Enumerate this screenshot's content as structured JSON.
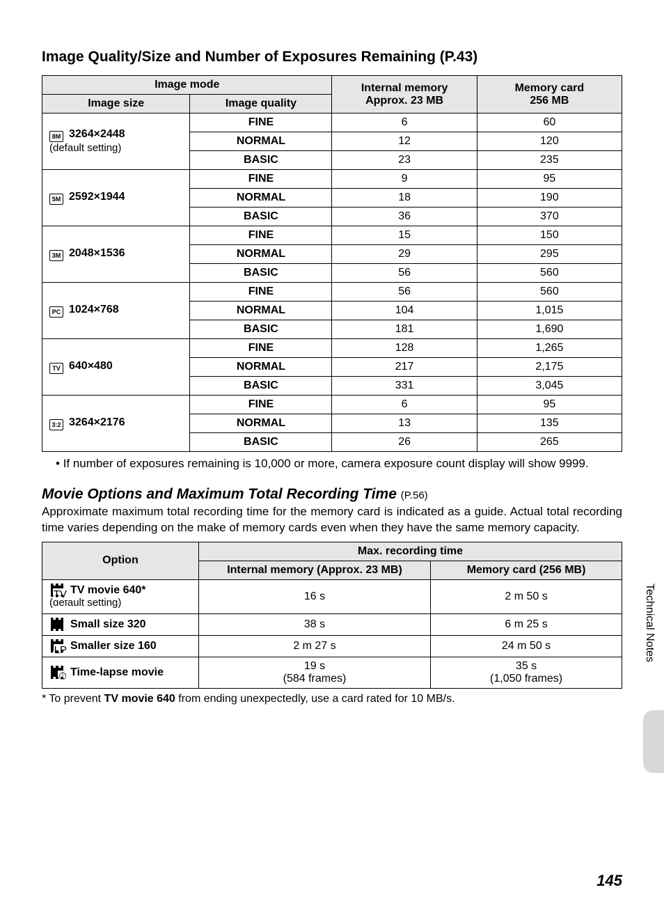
{
  "heading1": "Image Quality/Size and Number of Exposures Remaining (P.43)",
  "t1": {
    "headers": {
      "image_mode": "Image mode",
      "image_size": "Image size",
      "image_quality": "Image quality",
      "internal_memory": "Internal memory",
      "internal_memory_sub": "Approx. 23 MB",
      "memory_card": "Memory card",
      "memory_card_sub": "256 MB"
    },
    "sizes": [
      {
        "icon": "8M",
        "resolution": "3264×2448",
        "sub": "(default setting)",
        "rows": [
          {
            "quality": "FINE",
            "internal": "6",
            "card": "60"
          },
          {
            "quality": "NORMAL",
            "internal": "12",
            "card": "120"
          },
          {
            "quality": "BASIC",
            "internal": "23",
            "card": "235"
          }
        ]
      },
      {
        "icon": "5M",
        "resolution": "2592×1944",
        "sub": "",
        "rows": [
          {
            "quality": "FINE",
            "internal": "9",
            "card": "95"
          },
          {
            "quality": "NORMAL",
            "internal": "18",
            "card": "190"
          },
          {
            "quality": "BASIC",
            "internal": "36",
            "card": "370"
          }
        ]
      },
      {
        "icon": "3M",
        "resolution": "2048×1536",
        "sub": "",
        "rows": [
          {
            "quality": "FINE",
            "internal": "15",
            "card": "150"
          },
          {
            "quality": "NORMAL",
            "internal": "29",
            "card": "295"
          },
          {
            "quality": "BASIC",
            "internal": "56",
            "card": "560"
          }
        ]
      },
      {
        "icon": "PC",
        "resolution": "1024×768",
        "sub": "",
        "rows": [
          {
            "quality": "FINE",
            "internal": "56",
            "card": "560"
          },
          {
            "quality": "NORMAL",
            "internal": "104",
            "card": "1,015"
          },
          {
            "quality": "BASIC",
            "internal": "181",
            "card": "1,690"
          }
        ]
      },
      {
        "icon": "TV",
        "resolution": "640×480",
        "sub": "",
        "rows": [
          {
            "quality": "FINE",
            "internal": "128",
            "card": "1,265"
          },
          {
            "quality": "NORMAL",
            "internal": "217",
            "card": "2,175"
          },
          {
            "quality": "BASIC",
            "internal": "331",
            "card": "3,045"
          }
        ]
      },
      {
        "icon": "3:2",
        "resolution": "3264×2176",
        "sub": "",
        "rows": [
          {
            "quality": "FINE",
            "internal": "6",
            "card": "95"
          },
          {
            "quality": "NORMAL",
            "internal": "13",
            "card": "135"
          },
          {
            "quality": "BASIC",
            "internal": "26",
            "card": "265"
          }
        ]
      }
    ]
  },
  "note1": "If number of exposures remaining is 10,000 or more, camera exposure count display will show 9999.",
  "heading2": "Movie Options and Maximum Total Recording Time",
  "heading2_ref": "(P.56)",
  "para2": "Approximate maximum total recording time for the memory card is indicated as a guide. Actual total recording time varies depending on the make of memory cards even when they have the same memory capacity.",
  "t2": {
    "headers": {
      "option": "Option",
      "max_time": "Max. recording time",
      "internal": "Internal memory (Approx. 23 MB)",
      "card": "Memory card (256 MB)"
    },
    "rows": [
      {
        "icon_sub": "TV",
        "label": "TV movie 640*",
        "sub": "(default setting)",
        "internal": "16 s",
        "internal2": "",
        "card": "2 m 50 s",
        "card2": ""
      },
      {
        "icon_sub": "",
        "label": "Small size 320",
        "sub": "",
        "internal": "38 s",
        "internal2": "",
        "card": "6 m 25 s",
        "card2": ""
      },
      {
        "icon_sub": "LP",
        "label": "Smaller size 160",
        "sub": "",
        "internal": "2 m 27 s",
        "internal2": "",
        "card": "24 m 50 s",
        "card2": ""
      },
      {
        "icon_sub": "⏱",
        "label": "Time-lapse movie",
        "sub": "",
        "internal": "19 s",
        "internal2": "(584 frames)",
        "card": "35 s",
        "card2": "(1,050 frames)"
      }
    ]
  },
  "footnote_pre": "*  To prevent ",
  "footnote_bold": "TV movie 640",
  "footnote_post": " from ending unexpectedly, use a card rated for 10 MB/s.",
  "side_label": "Technical Notes",
  "page_number": "145",
  "colors": {
    "header_bg": "#e6e6e6",
    "border": "#000000",
    "text": "#000000",
    "tab": "#d8d8d8"
  },
  "t1_col_widths": [
    "25.5%",
    "24.5%",
    "25%",
    "25%"
  ],
  "t2_col_widths": [
    "27%",
    "40%",
    "33%"
  ]
}
